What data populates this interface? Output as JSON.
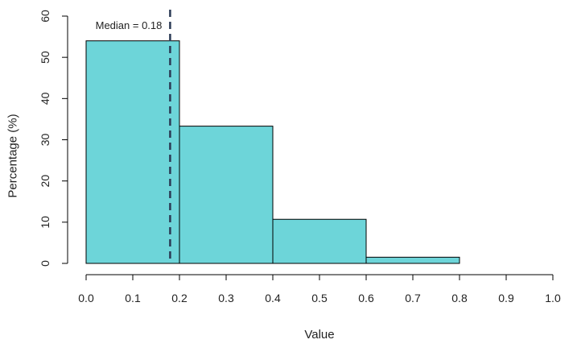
{
  "chart_data": {
    "type": "bar",
    "xlabel": "Value",
    "ylabel": "Percentage (%)",
    "bins": [
      {
        "start": 0.0,
        "end": 0.2,
        "value": 54.0
      },
      {
        "start": 0.2,
        "end": 0.4,
        "value": 33.3
      },
      {
        "start": 0.4,
        "end": 0.6,
        "value": 10.7
      },
      {
        "start": 0.6,
        "end": 0.8,
        "value": 1.5
      },
      {
        "start": 0.8,
        "end": 1.0,
        "value": 0.0
      }
    ],
    "xlim": [
      0.0,
      1.0
    ],
    "ylim": [
      0,
      60
    ],
    "x_ticks": [
      "0.0",
      "0.1",
      "0.2",
      "0.3",
      "0.4",
      "0.5",
      "0.6",
      "0.7",
      "0.8",
      "0.9",
      "1.0"
    ],
    "y_ticks": [
      "0",
      "10",
      "20",
      "30",
      "40",
      "50",
      "60"
    ],
    "median": {
      "value": 0.18,
      "label": "Median = 0.18",
      "line_style": "dashed"
    },
    "grid": false,
    "colors": {
      "bar_fill": "#6dd5d9",
      "bar_stroke": "#000000",
      "median_line": "#2b3a55"
    }
  }
}
